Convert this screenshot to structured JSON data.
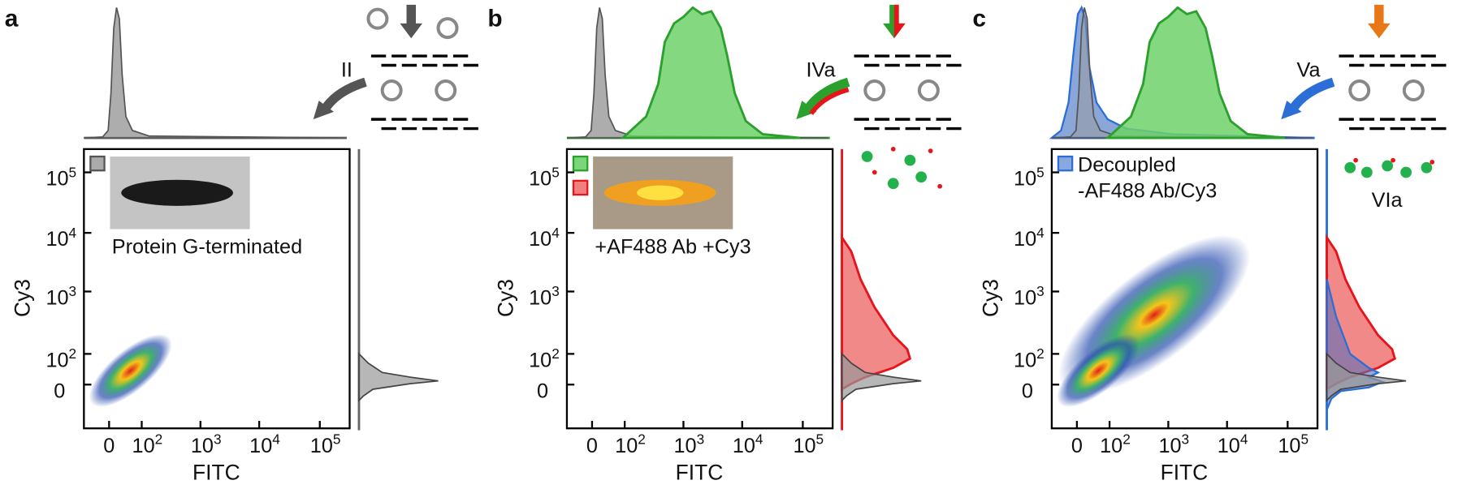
{
  "panels": [
    {
      "letter": "a",
      "step": "II",
      "caption": [
        "Protein G-terminated"
      ],
      "x_label": "FITC",
      "y_label": "Cy3"
    },
    {
      "letter": "b",
      "step": "IVa",
      "caption": [
        "+AF488 Ab +Cy3"
      ],
      "x_label": "FITC",
      "y_label": "Cy3"
    },
    {
      "letter": "c",
      "step": "Va",
      "step2": "VIa",
      "caption": [
        "Decoupled",
        "-AF488 Ab/Cy3"
      ],
      "x_label": "FITC",
      "y_label": "Cy3"
    }
  ],
  "ticks": {
    "x": [
      {
        "label": "0"
      },
      {
        "base": "10",
        "sup": "2"
      },
      {
        "base": "10",
        "sup": "3"
      },
      {
        "base": "10",
        "sup": "4"
      },
      {
        "base": "10",
        "sup": "5"
      }
    ],
    "y": [
      {
        "base": "10",
        "sup": "5"
      },
      {
        "base": "10",
        "sup": "4"
      },
      {
        "base": "10",
        "sup": "3"
      },
      {
        "base": "10",
        "sup": "2"
      },
      {
        "label": "0"
      }
    ]
  }
}
